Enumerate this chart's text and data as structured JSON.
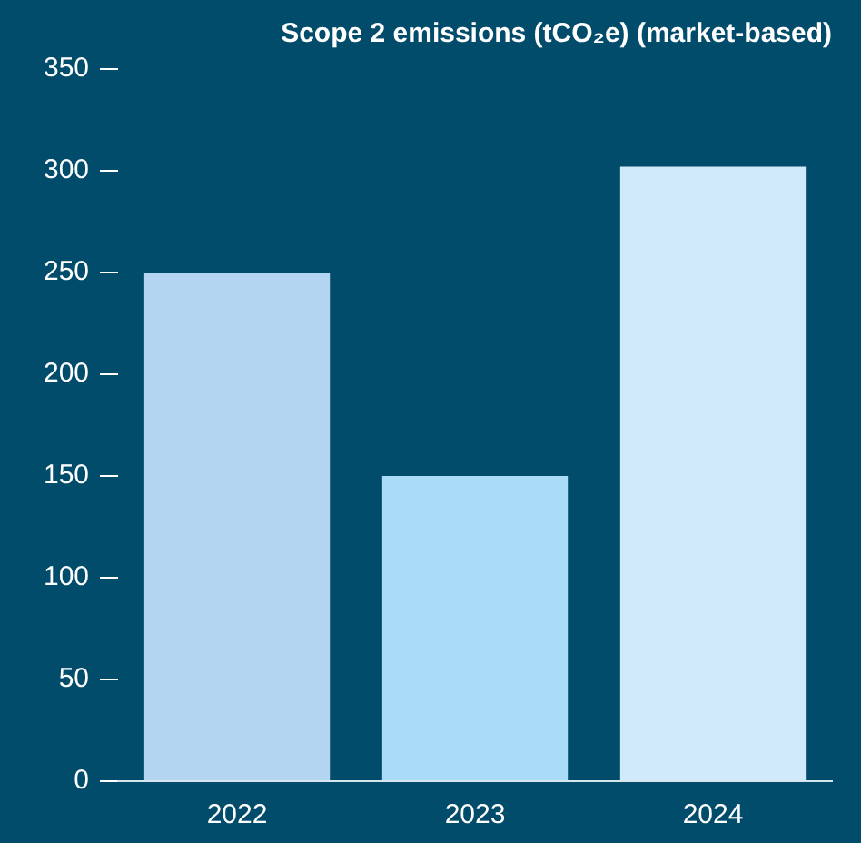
{
  "chart_data": {
    "type": "bar",
    "title": "Scope 2 emissions (tCO₂e) (market-based)",
    "categories": [
      "2022",
      "2023",
      "2024"
    ],
    "values": [
      250,
      150,
      302
    ],
    "colors": [
      "#b4d5f1",
      "#aadcf8",
      "#d0eafb"
    ],
    "ylim": [
      0,
      350
    ],
    "yticks": [
      0,
      50,
      100,
      150,
      200,
      250,
      300,
      350
    ],
    "grid": false,
    "legend": false
  }
}
